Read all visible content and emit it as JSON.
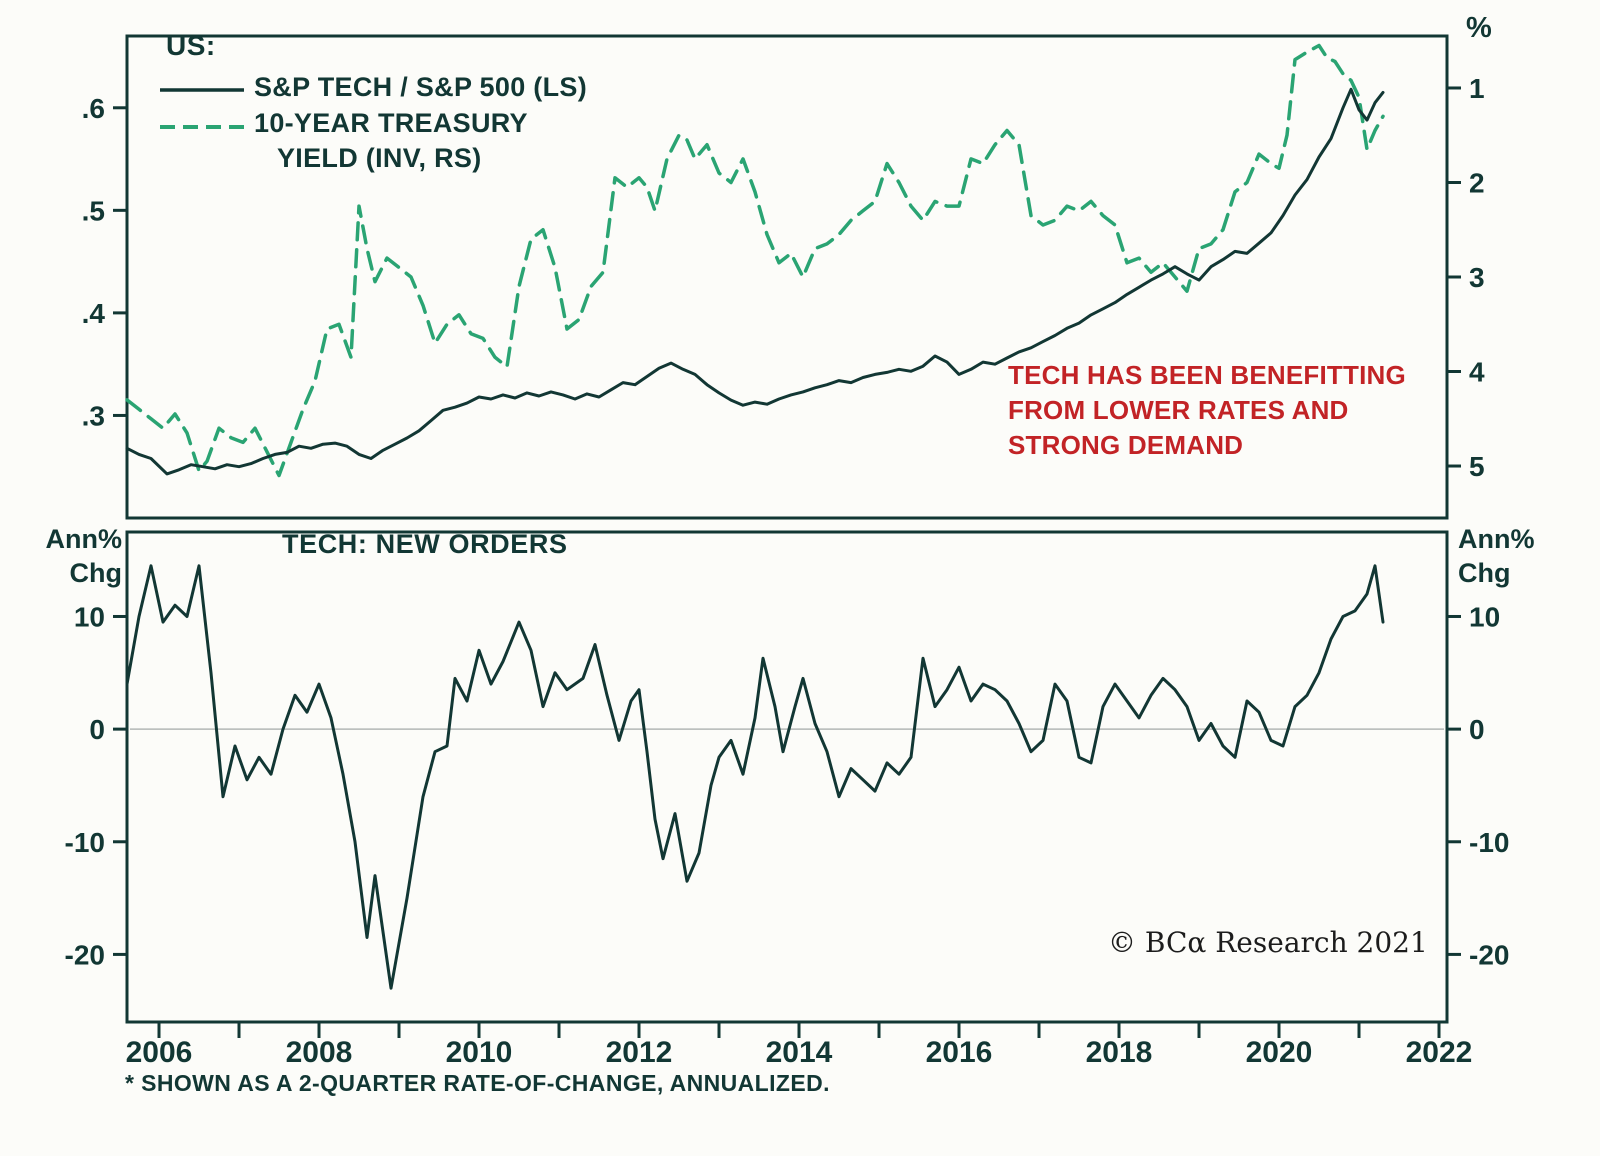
{
  "colors": {
    "ink": "#123734",
    "green": "#2aa473",
    "red": "#c22326",
    "zero": "#b3b7b6",
    "background": "#fcfcf9"
  },
  "top_panel": {
    "region_label": "US:",
    "ratio_label": "S&P TECH / S&P 500 (LS)",
    "yield_label_line1": "10-YEAR TREASURY",
    "yield_label_line2": "YIELD (INV, RS)",
    "right_axis_unit": "%",
    "annotation_lines": [
      "TECH HAS BEEN BENEFITTING",
      "FROM LOWER RATES AND",
      "STRONG DEMAND"
    ]
  },
  "bottom_panel": {
    "title": "TECH: NEW ORDERS",
    "left_axis_label_line1": "Ann%",
    "left_axis_label_line2": "Chg",
    "right_axis_label_line1": "Ann%",
    "right_axis_label_line2": "Chg"
  },
  "footer": {
    "footnote": "* SHOWN AS A 2-QUARTER RATE-OF-CHANGE, ANNUALIZED.",
    "copyright": "© BCα Research 2021"
  },
  "chart_data": [
    {
      "type": "line",
      "panel": "top",
      "title": "US: S&P Tech / S&P 500 vs 10-Year Treasury Yield (inverted)",
      "x_range": [
        2005.6,
        2022.1
      ],
      "x_ticks": [
        2006,
        2007,
        2008,
        2009,
        2010,
        2011,
        2012,
        2013,
        2014,
        2015,
        2016,
        2017,
        2018,
        2019,
        2020,
        2021,
        2022
      ],
      "x_tick_label_years": [
        2006,
        2008,
        2010,
        2012,
        2014,
        2016,
        2018,
        2020,
        2022
      ],
      "x_tick_labels": [
        "2006",
        "2008",
        "2010",
        "2012",
        "2014",
        "2016",
        "2018",
        "2020",
        "2022"
      ],
      "left_axis": {
        "label": "S&P Tech / S&P 500 ratio",
        "ticks": [
          0.6,
          0.5,
          0.4,
          0.3
        ],
        "tick_labels": [
          ".6",
          ".5",
          ".4",
          ".3"
        ],
        "range": [
          0.2,
          0.67
        ]
      },
      "right_axis": {
        "label": "10-year Treasury yield, inverted",
        "unit": "%",
        "ticks": [
          1,
          2,
          3,
          4,
          5
        ],
        "inverted": true,
        "range": [
          0.45,
          5.55
        ]
      },
      "annotation": "TECH HAS BEEN BENEFITTING FROM LOWER RATES AND STRONG DEMAND",
      "series": [
        {
          "name": "S&P TECH / S&P 500 (LS)",
          "axis": "left",
          "style": "solid",
          "x": [
            2005.6,
            2005.75,
            2005.9,
            2006.1,
            2006.25,
            2006.4,
            2006.55,
            2006.7,
            2006.85,
            2007.0,
            2007.15,
            2007.3,
            2007.45,
            2007.6,
            2007.75,
            2007.9,
            2008.05,
            2008.2,
            2008.35,
            2008.5,
            2008.65,
            2008.8,
            2008.95,
            2009.1,
            2009.25,
            2009.4,
            2009.55,
            2009.7,
            2009.85,
            2010.0,
            2010.15,
            2010.3,
            2010.45,
            2010.6,
            2010.75,
            2010.9,
            2011.05,
            2011.2,
            2011.35,
            2011.5,
            2011.65,
            2011.8,
            2011.95,
            2012.1,
            2012.25,
            2012.4,
            2012.55,
            2012.7,
            2012.85,
            2013.0,
            2013.15,
            2013.3,
            2013.45,
            2013.6,
            2013.75,
            2013.9,
            2014.05,
            2014.2,
            2014.35,
            2014.5,
            2014.65,
            2014.8,
            2014.95,
            2015.1,
            2015.25,
            2015.4,
            2015.55,
            2015.7,
            2015.85,
            2016.0,
            2016.15,
            2016.3,
            2016.45,
            2016.6,
            2016.75,
            2016.9,
            2017.05,
            2017.2,
            2017.35,
            2017.5,
            2017.65,
            2017.8,
            2017.95,
            2018.1,
            2018.25,
            2018.4,
            2018.55,
            2018.7,
            2018.85,
            2019.0,
            2019.15,
            2019.3,
            2019.45,
            2019.6,
            2019.75,
            2019.9,
            2020.05,
            2020.2,
            2020.35,
            2020.5,
            2020.65,
            2020.8,
            2020.9,
            2021.0,
            2021.1,
            2021.2,
            2021.3
          ],
          "y": [
            0.268,
            0.262,
            0.258,
            0.243,
            0.247,
            0.252,
            0.25,
            0.248,
            0.252,
            0.25,
            0.253,
            0.258,
            0.262,
            0.264,
            0.27,
            0.268,
            0.272,
            0.273,
            0.27,
            0.262,
            0.258,
            0.266,
            0.272,
            0.278,
            0.285,
            0.295,
            0.305,
            0.308,
            0.312,
            0.318,
            0.316,
            0.32,
            0.317,
            0.322,
            0.319,
            0.323,
            0.32,
            0.316,
            0.321,
            0.318,
            0.325,
            0.332,
            0.33,
            0.338,
            0.346,
            0.351,
            0.345,
            0.34,
            0.33,
            0.322,
            0.315,
            0.31,
            0.313,
            0.311,
            0.316,
            0.32,
            0.323,
            0.327,
            0.33,
            0.334,
            0.332,
            0.337,
            0.34,
            0.342,
            0.345,
            0.343,
            0.348,
            0.358,
            0.352,
            0.34,
            0.345,
            0.352,
            0.35,
            0.356,
            0.362,
            0.366,
            0.372,
            0.378,
            0.385,
            0.39,
            0.398,
            0.404,
            0.41,
            0.418,
            0.425,
            0.432,
            0.438,
            0.445,
            0.438,
            0.432,
            0.445,
            0.452,
            0.46,
            0.458,
            0.468,
            0.478,
            0.495,
            0.515,
            0.53,
            0.552,
            0.57,
            0.6,
            0.618,
            0.598,
            0.588,
            0.605,
            0.615
          ]
        },
        {
          "name": "10-YEAR TREASURY YIELD (INV, RS)",
          "axis": "right",
          "style": "dashed",
          "x": [
            2005.6,
            2005.75,
            2005.9,
            2006.05,
            2006.2,
            2006.35,
            2006.5,
            2006.6,
            2006.75,
            2006.9,
            2007.05,
            2007.2,
            2007.35,
            2007.5,
            2007.65,
            2007.8,
            2007.95,
            2008.1,
            2008.25,
            2008.4,
            2008.5,
            2008.6,
            2008.7,
            2008.85,
            2009.0,
            2009.15,
            2009.3,
            2009.45,
            2009.6,
            2009.75,
            2009.9,
            2010.05,
            2010.2,
            2010.35,
            2010.5,
            2010.65,
            2010.8,
            2010.95,
            2011.1,
            2011.25,
            2011.4,
            2011.55,
            2011.7,
            2011.85,
            2012.0,
            2012.1,
            2012.2,
            2012.35,
            2012.5,
            2012.6,
            2012.7,
            2012.85,
            2013.0,
            2013.15,
            2013.3,
            2013.45,
            2013.6,
            2013.75,
            2013.9,
            2014.05,
            2014.2,
            2014.35,
            2014.5,
            2014.65,
            2014.8,
            2014.95,
            2015.1,
            2015.25,
            2015.4,
            2015.55,
            2015.7,
            2015.85,
            2016.0,
            2016.15,
            2016.3,
            2016.45,
            2016.6,
            2016.75,
            2016.9,
            2017.05,
            2017.2,
            2017.35,
            2017.5,
            2017.65,
            2017.8,
            2017.95,
            2018.1,
            2018.25,
            2018.4,
            2018.55,
            2018.7,
            2018.85,
            2019.0,
            2019.15,
            2019.3,
            2019.45,
            2019.6,
            2019.75,
            2019.9,
            2020.0,
            2020.1,
            2020.2,
            2020.35,
            2020.5,
            2020.6,
            2020.7,
            2020.8,
            2020.9,
            2021.0,
            2021.1,
            2021.2,
            2021.3
          ],
          "y": [
            4.3,
            4.4,
            4.5,
            4.6,
            4.45,
            4.65,
            5.05,
            4.95,
            4.6,
            4.7,
            4.75,
            4.6,
            4.85,
            5.1,
            4.75,
            4.4,
            4.1,
            3.55,
            3.5,
            3.85,
            2.25,
            2.7,
            3.05,
            2.8,
            2.9,
            3.0,
            3.3,
            3.7,
            3.5,
            3.4,
            3.6,
            3.65,
            3.85,
            3.95,
            3.1,
            2.6,
            2.5,
            2.9,
            3.55,
            3.45,
            3.1,
            2.95,
            1.95,
            2.05,
            1.95,
            2.05,
            2.3,
            1.75,
            1.5,
            1.55,
            1.75,
            1.6,
            1.9,
            2.0,
            1.75,
            2.1,
            2.55,
            2.85,
            2.75,
            3.0,
            2.7,
            2.65,
            2.55,
            2.4,
            2.3,
            2.2,
            1.8,
            2.0,
            2.25,
            2.4,
            2.2,
            2.25,
            2.25,
            1.75,
            1.8,
            1.6,
            1.45,
            1.6,
            2.35,
            2.45,
            2.4,
            2.25,
            2.3,
            2.2,
            2.35,
            2.45,
            2.85,
            2.8,
            2.95,
            2.85,
            3.0,
            3.15,
            2.7,
            2.65,
            2.5,
            2.1,
            2.0,
            1.7,
            1.8,
            1.85,
            1.5,
            0.7,
            0.62,
            0.55,
            0.68,
            0.72,
            0.85,
            0.92,
            1.1,
            1.65,
            1.45,
            1.3
          ]
        }
      ]
    },
    {
      "type": "line",
      "panel": "bottom",
      "title": "TECH: NEW ORDERS",
      "ylabel": "Ann% Chg",
      "footnote": "* SHOWN AS A 2-QUARTER RATE-OF-CHANGE, ANNUALIZED.",
      "x_range": [
        2005.6,
        2022.1
      ],
      "x_ticks": [
        2006,
        2007,
        2008,
        2009,
        2010,
        2011,
        2012,
        2013,
        2014,
        2015,
        2016,
        2017,
        2018,
        2019,
        2020,
        2021,
        2022
      ],
      "x_tick_label_years": [
        2006,
        2008,
        2010,
        2012,
        2014,
        2016,
        2018,
        2020,
        2022
      ],
      "x_tick_labels": [
        "2006",
        "2008",
        "2010",
        "2012",
        "2014",
        "2016",
        "2018",
        "2020",
        "2022"
      ],
      "left_axis": {
        "label": "Ann% Chg",
        "ticks": [
          10,
          0,
          -10,
          -20
        ],
        "range": [
          -26,
          17.5
        ]
      },
      "right_axis": {
        "label": "Ann% Chg",
        "ticks": [
          10,
          0,
          -10,
          -20
        ],
        "range": [
          -26,
          17.5
        ]
      },
      "zero_line": true,
      "series": [
        {
          "name": "TECH: NEW ORDERS",
          "axis": "left",
          "style": "solid",
          "x": [
            2005.6,
            2005.75,
            2005.9,
            2006.05,
            2006.2,
            2006.35,
            2006.5,
            2006.65,
            2006.8,
            2006.95,
            2007.1,
            2007.25,
            2007.4,
            2007.55,
            2007.7,
            2007.85,
            2008.0,
            2008.15,
            2008.3,
            2008.45,
            2008.6,
            2008.7,
            2008.9,
            2009.1,
            2009.3,
            2009.45,
            2009.6,
            2009.7,
            2009.85,
            2010.0,
            2010.15,
            2010.3,
            2010.5,
            2010.65,
            2010.8,
            2010.95,
            2011.1,
            2011.3,
            2011.45,
            2011.6,
            2011.75,
            2011.9,
            2012.0,
            2012.1,
            2012.2,
            2012.3,
            2012.45,
            2012.6,
            2012.75,
            2012.9,
            2013.0,
            2013.15,
            2013.3,
            2013.45,
            2013.55,
            2013.7,
            2013.8,
            2013.95,
            2014.05,
            2014.2,
            2014.35,
            2014.5,
            2014.65,
            2014.8,
            2014.95,
            2015.1,
            2015.25,
            2015.4,
            2015.55,
            2015.7,
            2015.85,
            2016.0,
            2016.15,
            2016.3,
            2016.45,
            2016.6,
            2016.75,
            2016.9,
            2017.05,
            2017.2,
            2017.35,
            2017.5,
            2017.65,
            2017.8,
            2017.95,
            2018.1,
            2018.25,
            2018.4,
            2018.55,
            2018.7,
            2018.85,
            2019.0,
            2019.15,
            2019.3,
            2019.45,
            2019.6,
            2019.75,
            2019.9,
            2020.05,
            2020.2,
            2020.35,
            2020.5,
            2020.65,
            2020.8,
            2020.95,
            2021.1,
            2021.2,
            2021.3
          ],
          "y": [
            4,
            10,
            14.5,
            9.5,
            11,
            10,
            14.5,
            5,
            -6,
            -1.5,
            -4.5,
            -2.5,
            -4,
            0,
            3,
            1.5,
            4,
            1,
            -4,
            -10,
            -18.5,
            -13,
            -23,
            -15,
            -6,
            -2,
            -1.5,
            4.5,
            2.5,
            7,
            4,
            6,
            9.5,
            7,
            2,
            5,
            3.5,
            4.5,
            7.5,
            3,
            -1,
            2.5,
            3.5,
            -2,
            -8,
            -11.5,
            -7.5,
            -13.5,
            -11,
            -5,
            -2.5,
            -1,
            -4,
            1,
            6.3,
            2,
            -2,
            2,
            4.5,
            0.5,
            -2,
            -6,
            -3.5,
            -4.5,
            -5.5,
            -3,
            -4,
            -2.5,
            6.3,
            2,
            3.5,
            5.5,
            2.5,
            4,
            3.5,
            2.5,
            0.5,
            -2,
            -1,
            4,
            2.5,
            -2.5,
            -3,
            2,
            4,
            2.5,
            1,
            3,
            4.5,
            3.5,
            2,
            -1,
            0.5,
            -1.5,
            -2.5,
            2.5,
            1.5,
            -1,
            -1.5,
            2,
            3,
            5,
            8,
            10,
            10.5,
            12,
            14.5,
            9.5
          ]
        }
      ]
    }
  ]
}
